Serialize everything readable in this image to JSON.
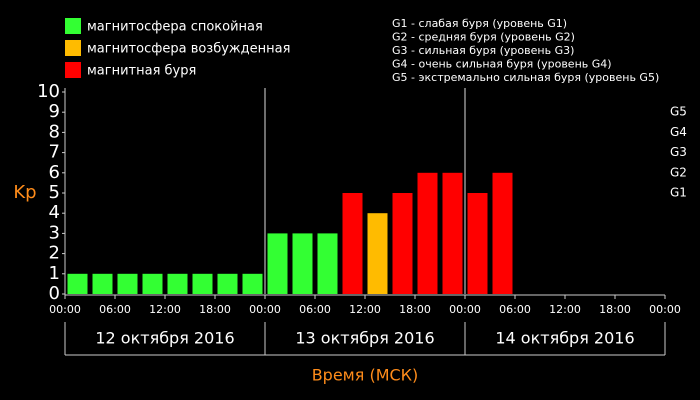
{
  "chart_data": {
    "type": "bar",
    "legend": [
      "магнитосфера спокойная",
      "магнитосфера возбужденная",
      "магнитная буря"
    ],
    "storm_levels": [
      "G1 - слабая буря (уровень G1)",
      "G2 - средняя буря (уровень G2)",
      "G3 - сильная буря (уровень G3)",
      "G4 - очень сильная буря (уровень G4)",
      "G5 - экстремально сильная буря (уровень G5)"
    ],
    "y_label": "Kp",
    "x_label": "Время (МСК)",
    "x": [
      0,
      3,
      6,
      9,
      12,
      15,
      18,
      21,
      24,
      27,
      30,
      33,
      36,
      39,
      42,
      45,
      48,
      51,
      54,
      57,
      60,
      63,
      66,
      69
    ],
    "series": [
      {
        "name": "магнитосфера спокойная",
        "color": "#33ff33",
        "values": [
          1,
          1,
          1,
          1,
          1,
          1,
          1,
          1,
          3,
          3,
          3,
          null,
          null,
          null,
          null,
          null,
          null,
          null,
          null,
          null,
          null,
          null,
          null,
          null
        ]
      },
      {
        "name": "магнитосфера возбужденная",
        "color": "#ffbb00",
        "values": [
          null,
          null,
          null,
          null,
          null,
          null,
          null,
          null,
          null,
          null,
          null,
          null,
          4,
          null,
          null,
          null,
          null,
          null,
          null,
          null,
          null,
          null,
          null,
          null
        ]
      },
      {
        "name": "магнитная буря",
        "color": "#ff0000",
        "values": [
          null,
          null,
          null,
          null,
          null,
          null,
          null,
          null,
          null,
          null,
          null,
          5,
          null,
          5,
          6,
          6,
          5,
          6,
          null,
          null,
          null,
          null,
          null,
          null
        ]
      }
    ],
    "xlim": [
      0,
      72
    ],
    "xticks": [
      {
        "value": 0,
        "label": "00:00"
      },
      {
        "value": 6,
        "label": "06:00"
      },
      {
        "value": 12,
        "label": "12:00"
      },
      {
        "value": 18,
        "label": "18:00"
      },
      {
        "value": 24,
        "label": "00:00"
      },
      {
        "value": 30,
        "label": "06:00"
      },
      {
        "value": 36,
        "label": "12:00"
      },
      {
        "value": 42,
        "label": "18:00"
      },
      {
        "value": 48,
        "label": "00:00"
      },
      {
        "value": 54,
        "label": "06:00"
      },
      {
        "value": 60,
        "label": "12:00"
      },
      {
        "value": 66,
        "label": "18:00"
      },
      {
        "value": 72,
        "label": "00:00"
      }
    ],
    "days": [
      {
        "label": "12 октября 2016",
        "from": 0,
        "to": 24
      },
      {
        "label": "13 октября 2016",
        "from": 24,
        "to": 48
      },
      {
        "label": "14 октября 2016",
        "from": 48,
        "to": 72
      }
    ],
    "ylim": [
      0,
      10
    ],
    "yticks": [
      0,
      1,
      2,
      3,
      4,
      5,
      6,
      7,
      8,
      9,
      10
    ],
    "y2ticks": [
      {
        "value": 5,
        "label": "G1"
      },
      {
        "value": 6,
        "label": "G2"
      },
      {
        "value": 7,
        "label": "G3"
      },
      {
        "value": 8,
        "label": "G4"
      },
      {
        "value": 9,
        "label": "G5"
      }
    ]
  }
}
